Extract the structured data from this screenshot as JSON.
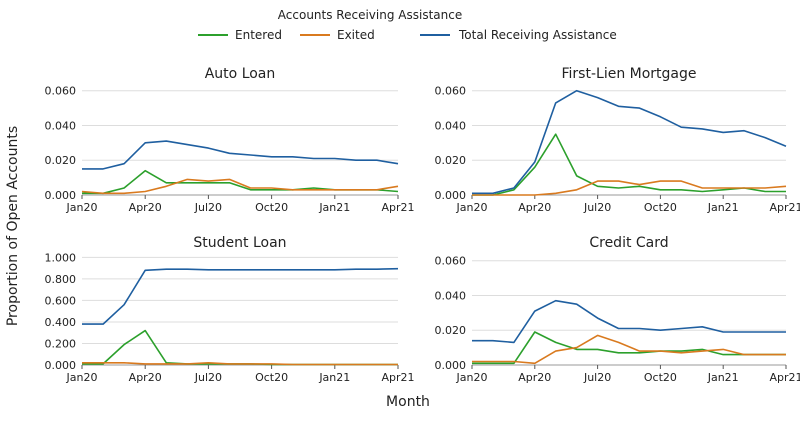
{
  "legend": {
    "title": "Accounts Receiving Assistance",
    "entries": [
      {
        "label": "Entered",
        "color": "#2ca02c"
      },
      {
        "label": "Exited",
        "color": "#d97a1f"
      },
      {
        "label": "Total Receiving Assistance",
        "color": "#1f5fa0"
      }
    ]
  },
  "xlabel": "Month",
  "ylabel": "Proportion of Open Accounts",
  "chart_data": [
    {
      "type": "line",
      "title": "Auto Loan",
      "x_ticks": [
        "Jan20",
        "Apr20",
        "Jul20",
        "Oct20",
        "Jan21",
        "Apr21"
      ],
      "y_ticks": [
        "0.000",
        "0.020",
        "0.040",
        "0.060"
      ],
      "ylim": [
        0,
        0.065
      ],
      "grid": true,
      "series": [
        {
          "name": "Entered",
          "values": [
            0.001,
            0.001,
            0.004,
            0.014,
            0.007,
            0.007,
            0.007,
            0.007,
            0.003,
            0.003,
            0.003,
            0.004,
            0.003,
            0.003,
            0.003,
            0.002
          ]
        },
        {
          "name": "Exited",
          "values": [
            0.002,
            0.001,
            0.001,
            0.002,
            0.005,
            0.009,
            0.008,
            0.009,
            0.004,
            0.004,
            0.003,
            0.003,
            0.003,
            0.003,
            0.003,
            0.005
          ]
        },
        {
          "name": "Total Receiving Assistance",
          "values": [
            0.015,
            0.015,
            0.018,
            0.03,
            0.031,
            0.029,
            0.027,
            0.024,
            0.023,
            0.022,
            0.022,
            0.021,
            0.021,
            0.02,
            0.02,
            0.018
          ]
        }
      ]
    },
    {
      "type": "line",
      "title": "First-Lien Mortgage",
      "x_ticks": [
        "Jan20",
        "Apr20",
        "Jul20",
        "Oct20",
        "Jan21",
        "Apr21"
      ],
      "y_ticks": [
        "0.000",
        "0.020",
        "0.040",
        "0.060"
      ],
      "ylim": [
        0,
        0.065
      ],
      "grid": true,
      "series": [
        {
          "name": "Entered",
          "values": [
            0.0,
            0.0,
            0.003,
            0.016,
            0.035,
            0.011,
            0.005,
            0.004,
            0.005,
            0.003,
            0.003,
            0.002,
            0.003,
            0.004,
            0.002,
            0.002
          ]
        },
        {
          "name": "Exited",
          "values": [
            0.0,
            0.0,
            0.0,
            0.0,
            0.001,
            0.003,
            0.008,
            0.008,
            0.006,
            0.008,
            0.008,
            0.004,
            0.004,
            0.004,
            0.004,
            0.005
          ]
        },
        {
          "name": "Total Receiving Assistance",
          "values": [
            0.001,
            0.001,
            0.004,
            0.019,
            0.053,
            0.06,
            0.056,
            0.051,
            0.05,
            0.045,
            0.039,
            0.038,
            0.036,
            0.037,
            0.033,
            0.028
          ]
        }
      ]
    },
    {
      "type": "line",
      "title": "Student Loan",
      "x_ticks": [
        "Jan20",
        "Apr20",
        "Jul20",
        "Oct20",
        "Jan21",
        "Apr21"
      ],
      "y_ticks": [
        "0.000",
        "0.200",
        "0.400",
        "0.600",
        "0.800",
        "1.000"
      ],
      "ylim": [
        0,
        1.05
      ],
      "grid": true,
      "series": [
        {
          "name": "Entered",
          "values": [
            0.01,
            0.01,
            0.19,
            0.32,
            0.02,
            0.01,
            0.01,
            0.01,
            0.01,
            0.005,
            0.005,
            0.005,
            0.005,
            0.005,
            0.005,
            0.005
          ]
        },
        {
          "name": "Exited",
          "values": [
            0.02,
            0.02,
            0.02,
            0.01,
            0.01,
            0.01,
            0.02,
            0.01,
            0.01,
            0.01,
            0.005,
            0.005,
            0.005,
            0.005,
            0.005,
            0.005
          ]
        },
        {
          "name": "Total Receiving Assistance",
          "values": [
            0.38,
            0.38,
            0.56,
            0.88,
            0.89,
            0.89,
            0.885,
            0.885,
            0.885,
            0.885,
            0.885,
            0.885,
            0.885,
            0.89,
            0.89,
            0.895
          ]
        }
      ]
    },
    {
      "type": "line",
      "title": "Credit Card",
      "x_ticks": [
        "Jan20",
        "Apr20",
        "Jul20",
        "Oct20",
        "Jan21",
        "Apr21"
      ],
      "y_ticks": [
        "0.000",
        "0.020",
        "0.040",
        "0.060"
      ],
      "ylim": [
        0,
        0.065
      ],
      "grid": true,
      "series": [
        {
          "name": "Entered",
          "values": [
            0.001,
            0.001,
            0.001,
            0.019,
            0.013,
            0.009,
            0.009,
            0.007,
            0.007,
            0.008,
            0.008,
            0.009,
            0.006,
            0.006,
            0.006,
            0.006
          ]
        },
        {
          "name": "Exited",
          "values": [
            0.002,
            0.002,
            0.002,
            0.001,
            0.008,
            0.01,
            0.017,
            0.013,
            0.008,
            0.008,
            0.007,
            0.008,
            0.009,
            0.006,
            0.006,
            0.006
          ]
        },
        {
          "name": "Total Receiving Assistance",
          "values": [
            0.014,
            0.014,
            0.013,
            0.031,
            0.037,
            0.035,
            0.027,
            0.021,
            0.021,
            0.02,
            0.021,
            0.022,
            0.019,
            0.019,
            0.019,
            0.019
          ]
        }
      ]
    }
  ]
}
